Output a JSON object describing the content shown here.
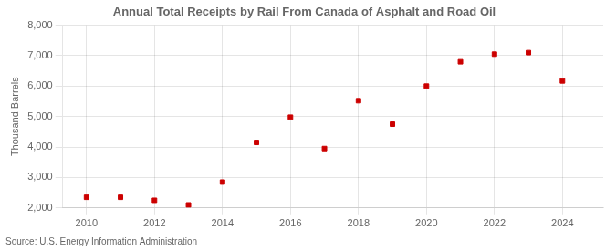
{
  "chart_data": {
    "type": "scatter",
    "title": "Annual Total Receipts by Rail From Canada of Asphalt and Road Oil",
    "ylabel": "Thousand Barrels",
    "source": "Source: U.S. Energy Information Administration",
    "x": [
      2010,
      2011,
      2012,
      2013,
      2014,
      2015,
      2016,
      2017,
      2018,
      2019,
      2020,
      2021,
      2022,
      2023,
      2024
    ],
    "values": [
      2350,
      2350,
      2250,
      2100,
      2850,
      4150,
      4980,
      3950,
      5520,
      4750,
      6000,
      6800,
      7050,
      7100,
      6170
    ],
    "color": "#cc0000",
    "marker": "square",
    "xlim": [
      2009.3,
      2025.2
    ],
    "xticks": [
      2010,
      2012,
      2014,
      2016,
      2018,
      2020,
      2022,
      2024
    ],
    "ylim": [
      2000,
      8000
    ],
    "yticks": [
      {
        "value": 2000,
        "label": "2,000"
      },
      {
        "value": 3000,
        "label": "3,000"
      },
      {
        "value": 4000,
        "label": "4,000"
      },
      {
        "value": 5000,
        "label": "5,000"
      },
      {
        "value": 6000,
        "label": "6,000"
      },
      {
        "value": 7000,
        "label": "7,000"
      },
      {
        "value": 8000,
        "label": "8,000"
      }
    ],
    "grid": true
  }
}
